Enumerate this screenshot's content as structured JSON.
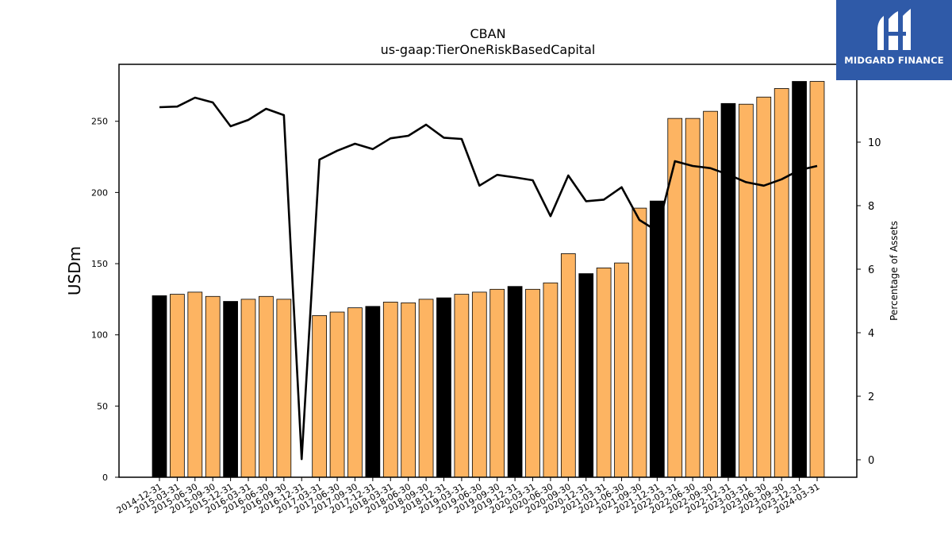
{
  "logo": {
    "text": "MIDGARD FINANCE",
    "background": "#2f5aa8"
  },
  "chart_data": {
    "type": "bar",
    "title": "CBAN",
    "subtitle": "us-gaap:TierOneRiskBasedCapital",
    "ylabel": "USDm",
    "y2label": "Percentage of Assets",
    "ylim": [
      0,
      290
    ],
    "y2lim": [
      -0.55,
      12.45
    ],
    "yticks": [
      0,
      50,
      100,
      150,
      200,
      250
    ],
    "y2ticks": [
      0,
      2,
      4,
      6,
      8,
      10
    ],
    "categories": [
      "2014-12-31",
      "2015-03-31",
      "2015-06-30",
      "2015-09-30",
      "2015-12-31",
      "2016-03-31",
      "2016-06-30",
      "2016-09-30",
      "2016-12-31",
      "2017-03-31",
      "2017-06-30",
      "2017-09-30",
      "2017-12-31",
      "2018-03-31",
      "2018-06-30",
      "2018-09-30",
      "2018-12-31",
      "2019-03-31",
      "2019-06-30",
      "2019-09-30",
      "2019-12-31",
      "2020-03-31",
      "2020-06-30",
      "2020-09-30",
      "2020-12-31",
      "2021-03-31",
      "2021-06-30",
      "2021-09-30",
      "2021-12-31",
      "2022-03-31",
      "2022-06-30",
      "2022-09-30",
      "2022-12-31",
      "2023-03-31",
      "2023-06-30",
      "2023-09-30",
      "2023-12-31",
      "2024-03-31"
    ],
    "series": [
      {
        "kind": "bar",
        "axis": "left",
        "values": [
          127.5,
          128.5,
          130,
          127,
          123.5,
          125,
          127,
          125,
          0,
          113.5,
          116,
          119,
          120,
          123,
          122.5,
          125,
          126,
          128.5,
          130,
          132,
          134,
          132,
          136.5,
          157,
          143,
          147,
          150.5,
          189,
          194,
          252,
          252,
          257,
          262.5,
          262,
          267,
          273,
          278,
          278
        ]
      },
      {
        "kind": "line",
        "axis": "right",
        "values": [
          11.1,
          11.12,
          11.4,
          11.25,
          10.5,
          10.7,
          11.05,
          10.85,
          0.02,
          9.45,
          9.73,
          9.95,
          9.78,
          10.12,
          10.2,
          10.55,
          10.14,
          10.1,
          8.63,
          8.97,
          8.89,
          8.8,
          7.67,
          8.95,
          8.14,
          8.19,
          8.58,
          7.55,
          7.2,
          9.4,
          9.25,
          9.18,
          8.98,
          8.74,
          8.63,
          8.83,
          9.12,
          9.25
        ]
      }
    ],
    "colors": {
      "bar_default": "#fdb462",
      "bar_year_end": "#000000",
      "line": "#000000",
      "edge": "#000000"
    }
  }
}
